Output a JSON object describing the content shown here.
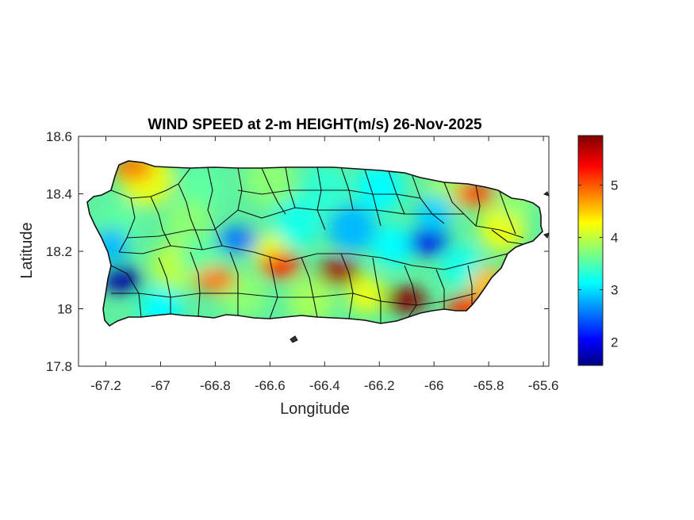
{
  "title": "WIND SPEED at 2-m HEIGHT(m/s) 26-Nov-2025",
  "xlabel": "Longitude",
  "ylabel": "Latitude",
  "x_ticks": [
    "-67.2",
    "-67",
    "-66.8",
    "-66.6",
    "-66.4",
    "-66.2",
    "-66",
    "-65.8",
    "-65.6"
  ],
  "y_ticks": [
    "18.6",
    "18.4",
    "18.2",
    "18",
    "17.8"
  ],
  "colorbar_ticks": [
    "5",
    "4",
    "3",
    "2"
  ],
  "chart_data": {
    "type": "heatmap",
    "title": "WIND SPEED at 2-m HEIGHT(m/s) 26-Nov-2025",
    "xlabel": "Longitude",
    "ylabel": "Latitude",
    "xlim": [
      -67.3,
      -65.58
    ],
    "ylim": [
      17.8,
      18.6
    ],
    "x_tick_values": [
      -67.2,
      -67,
      -66.8,
      -66.6,
      -66.4,
      -66.2,
      -66,
      -65.8,
      -65.6
    ],
    "y_tick_values": [
      18.6,
      18.4,
      18.2,
      18,
      17.8
    ],
    "colorbar": {
      "label": "",
      "range": [
        1.55,
        5.95
      ],
      "ticks": [
        2,
        3,
        4,
        5
      ],
      "colormap": "jet"
    },
    "grid": false,
    "features": [
      {
        "name": "low-west",
        "lon": -67.14,
        "lat": 18.1,
        "value": 1.7
      },
      {
        "name": "low-east-center",
        "lon": -66.02,
        "lat": 18.23,
        "value": 2.0
      },
      {
        "name": "low-central",
        "lon": -66.72,
        "lat": 18.24,
        "value": 2.6
      },
      {
        "name": "high-south-central",
        "lon": -66.35,
        "lat": 18.13,
        "value": 5.8
      },
      {
        "name": "high-south-east",
        "lon": -66.1,
        "lat": 18.03,
        "value": 5.9
      },
      {
        "name": "high-east-coast",
        "lon": -65.88,
        "lat": 18.0,
        "value": 5.2
      },
      {
        "name": "high-northeast",
        "lon": -65.85,
        "lat": 18.4,
        "value": 5.1
      },
      {
        "name": "high-northwest",
        "lon": -67.1,
        "lat": 18.49,
        "value": 4.9
      },
      {
        "name": "high-south-west",
        "lon": -66.8,
        "lat": 18.1,
        "value": 4.9
      },
      {
        "name": "high-center",
        "lon": -66.56,
        "lat": 18.15,
        "value": 5.3
      }
    ]
  }
}
